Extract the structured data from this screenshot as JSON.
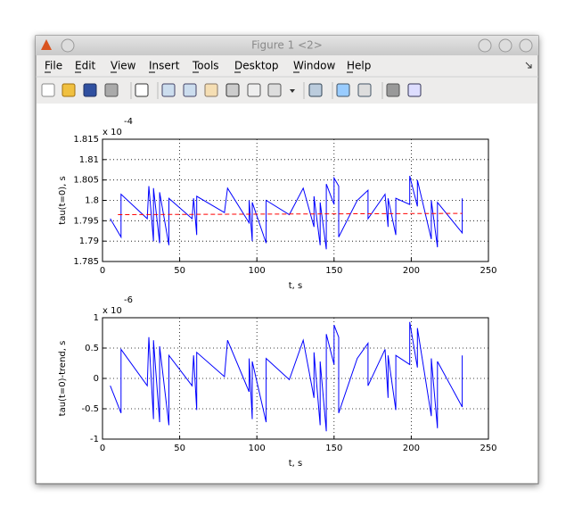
{
  "window": {
    "title": "Figure 1 <2>"
  },
  "menu": [
    "File",
    "Edit",
    "View",
    "Insert",
    "Tools",
    "Desktop",
    "Window",
    "Help"
  ],
  "chart_data": [
    {
      "type": "line",
      "xlabel": "t, s",
      "ylabel": "tau(t=0), s",
      "exponent_label": {
        "base": "x 10",
        "power": "-4"
      },
      "xlim": [
        0,
        250
      ],
      "ylim": [
        1.785,
        1.815
      ],
      "xticks": [
        0,
        50,
        100,
        150,
        200,
        250
      ],
      "yticks": [
        1.785,
        1.79,
        1.795,
        1.8,
        1.805,
        1.81,
        1.815
      ],
      "grid": true,
      "series": [
        {
          "color": "#0000ff",
          "dash": false,
          "x": [
            5,
            12,
            12,
            29,
            30,
            33,
            33,
            37,
            37,
            43,
            43,
            58,
            59,
            61,
            61,
            79,
            81,
            95,
            95,
            97,
            97,
            106,
            106,
            121,
            130,
            137,
            137,
            141,
            141,
            145,
            145,
            150,
            150,
            153,
            153,
            165,
            172,
            172,
            183,
            185,
            185,
            190,
            190,
            199,
            199,
            204,
            204,
            213,
            213,
            217,
            217,
            233,
            233
          ],
          "values": [
            1.7955,
            1.791,
            1.8015,
            1.7955,
            1.8035,
            1.79,
            1.803,
            1.7895,
            1.802,
            1.789,
            1.8005,
            1.7955,
            1.8005,
            1.7915,
            1.801,
            1.797,
            1.803,
            1.7945,
            1.8,
            1.79,
            1.7995,
            1.7895,
            1.8,
            1.7965,
            1.803,
            1.7935,
            1.801,
            1.789,
            1.7995,
            1.788,
            1.804,
            1.799,
            1.8055,
            1.8035,
            1.791,
            1.8,
            1.8025,
            1.7955,
            1.8015,
            1.7935,
            1.8005,
            1.7915,
            1.8005,
            1.799,
            1.806,
            1.7985,
            1.805,
            1.7905,
            1.8,
            1.7885,
            1.7995,
            1.792,
            1.8005
          ]
        },
        {
          "color": "#ff0000",
          "dash": true,
          "x": [
            10,
            233
          ],
          "values": [
            1.7965,
            1.7968
          ]
        }
      ]
    },
    {
      "type": "line",
      "xlabel": "t, s",
      "ylabel": "tau(t=0)-trend, s",
      "exponent_label": {
        "base": "x 10",
        "power": "-6"
      },
      "xlim": [
        0,
        250
      ],
      "ylim": [
        -1,
        1
      ],
      "xticks": [
        0,
        50,
        100,
        150,
        200,
        250
      ],
      "yticks": [
        -1,
        -0.5,
        0,
        0.5,
        1
      ],
      "grid": true,
      "series": [
        {
          "color": "#0000ff",
          "dash": false,
          "x": [
            5,
            12,
            12,
            29,
            30,
            33,
            33,
            37,
            37,
            43,
            43,
            58,
            59,
            61,
            61,
            79,
            81,
            95,
            95,
            97,
            97,
            106,
            106,
            121,
            130,
            137,
            137,
            141,
            141,
            145,
            145,
            150,
            150,
            153,
            153,
            165,
            172,
            172,
            183,
            185,
            185,
            190,
            190,
            199,
            199,
            204,
            204,
            213,
            213,
            217,
            217,
            233,
            233
          ],
          "values": [
            -0.12,
            -0.57,
            0.48,
            -0.12,
            0.68,
            -0.67,
            0.63,
            -0.72,
            0.53,
            -0.77,
            0.38,
            -0.12,
            0.38,
            -0.52,
            0.43,
            0.03,
            0.63,
            -0.22,
            0.33,
            -0.67,
            0.28,
            -0.72,
            0.33,
            -0.02,
            0.63,
            -0.32,
            0.43,
            -0.77,
            0.28,
            -0.87,
            0.73,
            0.23,
            0.88,
            0.68,
            -0.57,
            0.33,
            0.58,
            -0.12,
            0.48,
            -0.32,
            0.38,
            -0.52,
            0.38,
            0.23,
            0.93,
            0.18,
            0.83,
            -0.62,
            0.33,
            -0.82,
            0.28,
            -0.47,
            0.38
          ]
        }
      ]
    }
  ]
}
